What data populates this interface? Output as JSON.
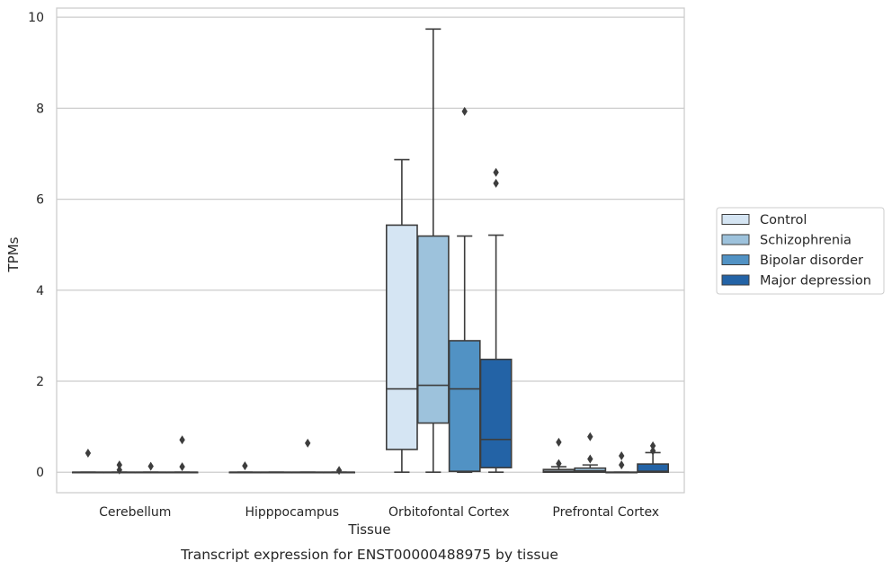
{
  "chart_data": {
    "type": "box",
    "title": "Transcript expression for ENST00000488975 by tissue",
    "xlabel": "Tissue",
    "ylabel": "TPMs",
    "ylim": [
      -0.45,
      10.2
    ],
    "yticks": [
      0,
      2,
      4,
      6,
      8,
      10
    ],
    "grid": "horizontal",
    "legend_position": "right",
    "categories": [
      "Cerebellum",
      "Hipppocampus",
      "Orbitofontal Cortex",
      "Prefrontal Cortex"
    ],
    "series": [
      {
        "name": "Control",
        "color": "#d5e5f3",
        "boxes": [
          {
            "q1": 0,
            "median": 0,
            "q3": 0,
            "whislo": 0,
            "whishi": 0,
            "fliers": [
              0.42
            ]
          },
          {
            "q1": 0,
            "median": 0,
            "q3": 0,
            "whislo": 0,
            "whishi": 0,
            "fliers": [
              0.14
            ]
          },
          {
            "q1": 0.5,
            "median": 1.83,
            "q3": 5.43,
            "whislo": 0,
            "whishi": 6.87,
            "fliers": []
          },
          {
            "q1": 0,
            "median": 0.02,
            "q3": 0.06,
            "whislo": 0,
            "whishi": 0.12,
            "fliers": [
              0.19,
              0.66
            ]
          }
        ]
      },
      {
        "name": "Schizophrenia",
        "color": "#9dc2dc",
        "boxes": [
          {
            "q1": 0,
            "median": 0,
            "q3": 0,
            "whislo": 0,
            "whishi": 0,
            "fliers": [
              0.05,
              0.16
            ]
          },
          {
            "q1": 0,
            "median": 0,
            "q3": 0,
            "whislo": 0,
            "whishi": 0,
            "fliers": []
          },
          {
            "q1": 1.08,
            "median": 1.91,
            "q3": 5.19,
            "whislo": 0,
            "whishi": 9.74,
            "fliers": []
          },
          {
            "q1": 0,
            "median": 0.03,
            "q3": 0.09,
            "whislo": 0,
            "whishi": 0.16,
            "fliers": [
              0.29,
              0.78
            ]
          }
        ]
      },
      {
        "name": "Bipolar disorder",
        "color": "#5192c4",
        "boxes": [
          {
            "q1": 0,
            "median": 0,
            "q3": 0,
            "whislo": 0,
            "whishi": 0,
            "fliers": [
              0.13
            ]
          },
          {
            "q1": 0,
            "median": 0,
            "q3": 0,
            "whislo": 0,
            "whishi": 0,
            "fliers": [
              0.64
            ]
          },
          {
            "q1": 0.02,
            "median": 1.83,
            "q3": 2.89,
            "whislo": 0,
            "whishi": 5.19,
            "fliers": [
              7.93
            ]
          },
          {
            "q1": 0,
            "median": 0,
            "q3": 0,
            "whislo": 0,
            "whishi": 0,
            "fliers": [
              0.16,
              0.36
            ]
          }
        ]
      },
      {
        "name": "Major depression",
        "color": "#2363a6",
        "boxes": [
          {
            "q1": 0,
            "median": 0,
            "q3": 0,
            "whislo": 0,
            "whishi": 0,
            "fliers": [
              0.12,
              0.71
            ]
          },
          {
            "q1": 0,
            "median": 0,
            "q3": 0,
            "whislo": 0,
            "whishi": 0,
            "fliers": [
              0.04
            ]
          },
          {
            "q1": 0.1,
            "median": 0.72,
            "q3": 2.48,
            "whislo": 0,
            "whishi": 5.21,
            "fliers": [
              6.35,
              6.59
            ]
          },
          {
            "q1": 0,
            "median": 0.02,
            "q3": 0.18,
            "whislo": 0,
            "whishi": 0.43,
            "fliers": [
              0.47,
              0.58
            ]
          }
        ]
      }
    ]
  }
}
